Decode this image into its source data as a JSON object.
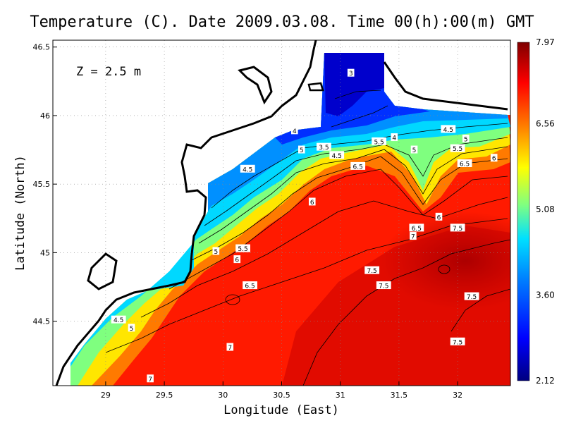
{
  "chart_data": {
    "type": "heatmap",
    "title": "Temperature (C). Date 2009.03.08. Time 00(h):00(m) GMT",
    "xlabel": "Longitude (East)",
    "ylabel": "Latitude (North)",
    "annotation": "Z = 2.5 m",
    "xlim": [
      28.55,
      32.45
    ],
    "ylim": [
      44.03,
      46.55
    ],
    "x_ticks": [
      29,
      29.5,
      30,
      30.5,
      31,
      31.5,
      32
    ],
    "x_tick_labels": [
      "29",
      "29.5",
      "30",
      "30.5",
      "31",
      "31.5",
      "32"
    ],
    "y_ticks": [
      44.5,
      45,
      45.5,
      46,
      46.5
    ],
    "y_tick_labels": [
      "44.5",
      "45",
      "45.5",
      "46",
      "46.5"
    ],
    "grid": true,
    "colorbar": {
      "min": 2.12,
      "max": 7.97,
      "ticks": [
        2.12,
        3.6,
        5.08,
        6.56,
        7.97
      ],
      "tick_labels": [
        "2.12",
        "3.60",
        "5.08",
        "6.56",
        "7.97"
      ],
      "colormap": [
        "#00007f",
        "#0000ff",
        "#0080ff",
        "#00e0ff",
        "#80ff80",
        "#ffff00",
        "#ff8000",
        "#ff0000",
        "#7f0000"
      ]
    },
    "contour_labels": [
      {
        "text": "3",
        "x": 31.09,
        "y": 46.31
      },
      {
        "text": "4",
        "x": 30.61,
        "y": 45.89
      },
      {
        "text": "4",
        "x": 31.46,
        "y": 45.84
      },
      {
        "text": "3.5",
        "x": 30.86,
        "y": 45.77
      },
      {
        "text": "4.5",
        "x": 30.97,
        "y": 45.71
      },
      {
        "text": "5.5",
        "x": 31.33,
        "y": 45.81
      },
      {
        "text": "5",
        "x": 30.67,
        "y": 45.75
      },
      {
        "text": "4.5",
        "x": 31.92,
        "y": 45.9
      },
      {
        "text": "5",
        "x": 32.07,
        "y": 45.83
      },
      {
        "text": "5",
        "x": 31.63,
        "y": 45.75
      },
      {
        "text": "5.5",
        "x": 32.0,
        "y": 45.76
      },
      {
        "text": "6",
        "x": 32.31,
        "y": 45.69
      },
      {
        "text": "6.5",
        "x": 32.06,
        "y": 45.65
      },
      {
        "text": "6.5",
        "x": 31.15,
        "y": 45.63
      },
      {
        "text": "4.5",
        "x": 30.21,
        "y": 45.61
      },
      {
        "text": "6",
        "x": 30.76,
        "y": 45.37
      },
      {
        "text": "6",
        "x": 31.84,
        "y": 45.26
      },
      {
        "text": "6.5",
        "x": 31.65,
        "y": 45.18
      },
      {
        "text": "7.5",
        "x": 32.0,
        "y": 45.18
      },
      {
        "text": "7",
        "x": 31.62,
        "y": 45.12
      },
      {
        "text": "5",
        "x": 29.94,
        "y": 45.01
      },
      {
        "text": "5.5",
        "x": 30.17,
        "y": 45.03
      },
      {
        "text": "6",
        "x": 30.12,
        "y": 44.95
      },
      {
        "text": "7.5",
        "x": 31.27,
        "y": 44.87
      },
      {
        "text": "7.5",
        "x": 31.37,
        "y": 44.76
      },
      {
        "text": "6.5",
        "x": 30.23,
        "y": 44.76
      },
      {
        "text": "7.5",
        "x": 32.12,
        "y": 44.68
      },
      {
        "text": "4.5",
        "x": 29.11,
        "y": 44.51
      },
      {
        "text": "5",
        "x": 29.22,
        "y": 44.45
      },
      {
        "text": "7",
        "x": 30.06,
        "y": 44.31
      },
      {
        "text": "7.5",
        "x": 32.0,
        "y": 44.35
      },
      {
        "text": "7",
        "x": 29.38,
        "y": 44.08
      }
    ]
  }
}
